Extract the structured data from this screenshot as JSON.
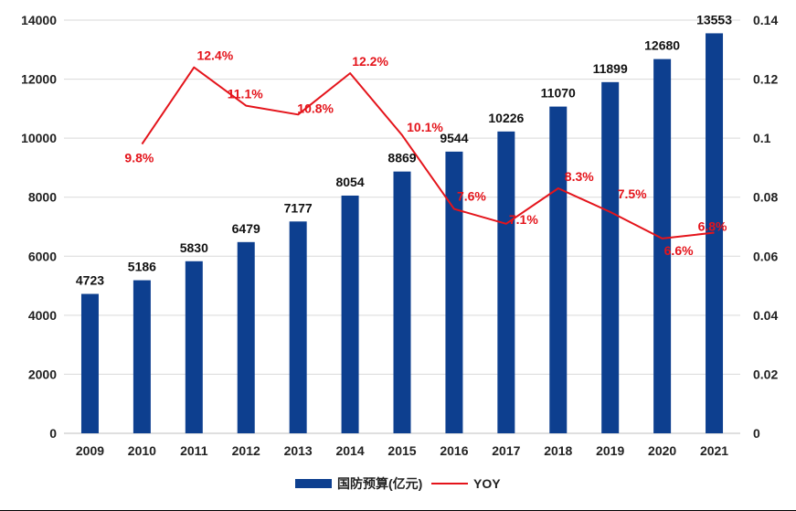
{
  "chart_data": {
    "type": "bar",
    "categories": [
      "2009",
      "2010",
      "2011",
      "2012",
      "2013",
      "2014",
      "2015",
      "2016",
      "2017",
      "2018",
      "2019",
      "2020",
      "2021"
    ],
    "series": [
      {
        "name": "国防预算(亿元)",
        "type": "bar",
        "axis": "left",
        "color": "#0d3f8f",
        "values": [
          4723,
          5186,
          5830,
          6479,
          7177,
          8054,
          8869,
          9544,
          10226,
          11070,
          11899,
          12680,
          13553
        ],
        "labels": [
          "4723",
          "5186",
          "5830",
          "6479",
          "7177",
          "8054",
          "8869",
          "9544",
          "10226",
          "11070",
          "11899",
          "12680",
          "13553"
        ]
      },
      {
        "name": "YOY",
        "type": "line",
        "axis": "right",
        "color": "#e4141b",
        "values": [
          null,
          0.098,
          0.124,
          0.111,
          0.108,
          0.122,
          0.101,
          0.076,
          0.071,
          0.083,
          0.075,
          0.066,
          0.068
        ],
        "labels": [
          "",
          "9.8%",
          "12.4%",
          "11.1%",
          "10.8%",
          "12.2%",
          "10.1%",
          "7.6%",
          "7.1%",
          "8.3%",
          "7.5%",
          "6.6%",
          "6.8%"
        ]
      }
    ],
    "y_left": {
      "lim": [
        0,
        14000
      ],
      "ticks": [
        "0",
        "2000",
        "4000",
        "6000",
        "8000",
        "10000",
        "12000",
        "14000"
      ]
    },
    "y_right": {
      "lim": [
        0,
        0.14
      ],
      "ticks": [
        "0",
        "0.02",
        "0.04",
        "0.06",
        "0.08",
        "0.1",
        "0.12",
        "0.14"
      ]
    },
    "grid": true,
    "legend_position": "bottom-center"
  }
}
